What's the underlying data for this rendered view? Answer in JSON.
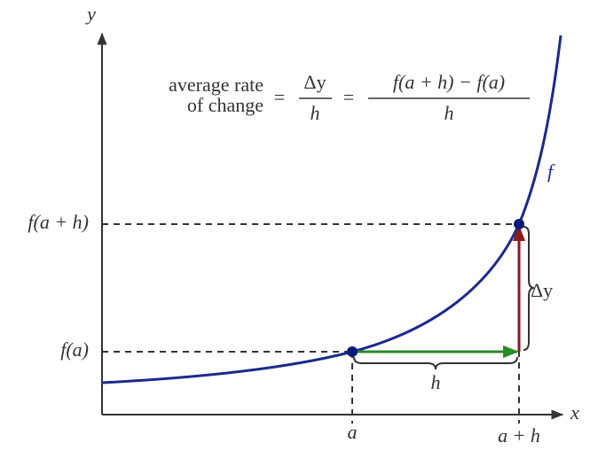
{
  "formula": {
    "left": [
      "average rate",
      "of change"
    ],
    "equals_1": "=",
    "frac_1": {
      "numerator": "Δy",
      "denominator": "h"
    },
    "equals_2": "=",
    "frac_2": {
      "numerator": "f(a + h) − f(a)",
      "denominator": "h"
    }
  },
  "axes": {
    "x_label": "x",
    "y_label": "y"
  },
  "curve_label": "f",
  "y_labels": [
    "f(a + h)",
    "f(a)"
  ],
  "x_labels": [
    "a",
    "a + h"
  ],
  "brace_labels": {
    "h": "h",
    "dy": "Δy"
  }
}
